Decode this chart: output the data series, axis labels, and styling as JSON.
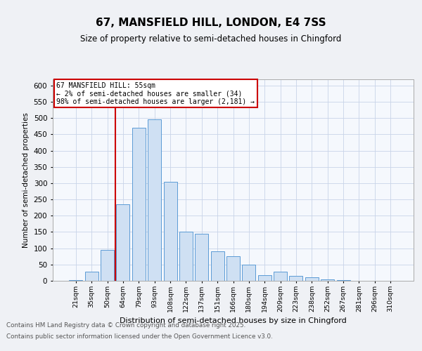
{
  "title_line1": "67, MANSFIELD HILL, LONDON, E4 7SS",
  "title_line2": "Size of property relative to semi-detached houses in Chingford",
  "xlabel": "Distribution of semi-detached houses by size in Chingford",
  "ylabel": "Number of semi-detached properties",
  "categories": [
    "21sqm",
    "35sqm",
    "50sqm",
    "64sqm",
    "79sqm",
    "93sqm",
    "108sqm",
    "122sqm",
    "137sqm",
    "151sqm",
    "166sqm",
    "180sqm",
    "194sqm",
    "209sqm",
    "223sqm",
    "238sqm",
    "252sqm",
    "267sqm",
    "281sqm",
    "296sqm",
    "310sqm"
  ],
  "values": [
    3,
    28,
    95,
    235,
    470,
    495,
    305,
    150,
    145,
    90,
    75,
    50,
    18,
    28,
    15,
    10,
    5,
    3,
    1,
    0,
    0
  ],
  "bar_color": "#cfe0f3",
  "bar_edge_color": "#5b9bd5",
  "vline_position": 2.5,
  "annotation_title": "67 MANSFIELD HILL: 55sqm",
  "annotation_line1": "← 2% of semi-detached houses are smaller (34)",
  "annotation_line2": "98% of semi-detached houses are larger (2,181) →",
  "annotation_box_color": "#ffffff",
  "annotation_box_edge": "#cc0000",
  "vline_color": "#cc0000",
  "ylim": [
    0,
    620
  ],
  "yticks": [
    0,
    50,
    100,
    150,
    200,
    250,
    300,
    350,
    400,
    450,
    500,
    550,
    600
  ],
  "footer_line1": "Contains HM Land Registry data © Crown copyright and database right 2025.",
  "footer_line2": "Contains public sector information licensed under the Open Government Licence v3.0.",
  "bg_color": "#eff1f5",
  "plot_bg_color": "#f5f8fd"
}
